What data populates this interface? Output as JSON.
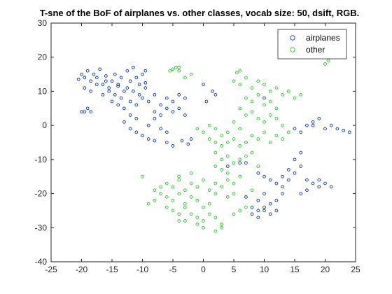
{
  "chart_data": {
    "type": "scatter",
    "title": "T-sne of the BoF of airplanes vs. other classes, vocab size: 50, dsift, RGB.",
    "xlabel": "",
    "ylabel": "",
    "xlim": [
      -25,
      25
    ],
    "ylim": [
      -40,
      30
    ],
    "xticks": [
      "-25",
      "-20",
      "-15",
      "-10",
      "-5",
      "0",
      "5",
      "10",
      "15",
      "20",
      "25"
    ],
    "yticks": [
      "-40",
      "-30",
      "-20",
      "-10",
      "0",
      "10",
      "20",
      "30"
    ],
    "grid": false,
    "legend_position": "top-right",
    "series": [
      {
        "name": "airplanes",
        "color": "#0033cc",
        "points": [
          [
            -20.5,
            13.5
          ],
          [
            -20,
            15
          ],
          [
            -19.5,
            14
          ],
          [
            -19,
            16
          ],
          [
            -18.5,
            13
          ],
          [
            -18,
            15
          ],
          [
            -17.5,
            14
          ],
          [
            -17,
            16.5
          ],
          [
            -16.5,
            12
          ],
          [
            -16,
            14.5
          ],
          [
            -15.5,
            11
          ],
          [
            -15,
            13
          ],
          [
            -14.5,
            15
          ],
          [
            -14,
            12
          ],
          [
            -13.5,
            14
          ],
          [
            -13,
            10
          ],
          [
            -12.5,
            16
          ],
          [
            -12,
            13
          ],
          [
            -11.5,
            17
          ],
          [
            -11,
            14
          ],
          [
            -10.5,
            12
          ],
          [
            -10,
            15
          ],
          [
            -9.5,
            16
          ],
          [
            -19.5,
            11
          ],
          [
            -18.5,
            10
          ],
          [
            -17.5,
            12
          ],
          [
            -16.5,
            9
          ],
          [
            -15.5,
            10
          ],
          [
            -14.5,
            9
          ],
          [
            -13.5,
            8
          ],
          [
            -12.5,
            11
          ],
          [
            -11.5,
            10
          ],
          [
            -10.5,
            9
          ],
          [
            -9.5,
            11
          ],
          [
            -19.5,
            4
          ],
          [
            -19,
            5
          ],
          [
            -18.5,
            4
          ],
          [
            -20,
            4
          ],
          [
            -15,
            7
          ],
          [
            -14,
            6
          ],
          [
            -13,
            5
          ],
          [
            -12,
            7
          ],
          [
            -11,
            6
          ],
          [
            -10,
            8
          ],
          [
            -9,
            7
          ],
          [
            -8,
            9
          ],
          [
            -7,
            6
          ],
          [
            -6,
            8
          ],
          [
            -5,
            7
          ],
          [
            -4,
            9
          ],
          [
            -3,
            8
          ],
          [
            -8,
            4
          ],
          [
            -7,
            3
          ],
          [
            -6,
            5
          ],
          [
            -5,
            4
          ],
          [
            -4,
            5
          ],
          [
            -3,
            3
          ],
          [
            -12,
            3
          ],
          [
            -11,
            2
          ],
          [
            -13,
            1
          ],
          [
            -12,
            -1
          ],
          [
            -11,
            -2
          ],
          [
            -10,
            -3
          ],
          [
            -9,
            -4
          ],
          [
            -8,
            -4.5
          ],
          [
            -6,
            -5
          ],
          [
            -5,
            -6
          ],
          [
            -9,
            0
          ],
          [
            -8,
            2
          ],
          [
            -7,
            -1
          ],
          [
            -6,
            -2
          ],
          [
            -3.5,
            -4.5
          ],
          [
            -2.5,
            -5.5
          ],
          [
            -2,
            -4
          ],
          [
            1.5,
            10
          ],
          [
            2,
            9
          ],
          [
            0,
            12
          ],
          [
            0.5,
            7
          ],
          [
            10,
            8
          ],
          [
            18,
            1
          ],
          [
            19,
            2
          ],
          [
            18,
            0
          ],
          [
            20,
            -1
          ],
          [
            21,
            0
          ],
          [
            22,
            -1
          ],
          [
            23,
            -1.5
          ],
          [
            24,
            -2
          ],
          [
            16,
            -2
          ],
          [
            17,
            0
          ],
          [
            15,
            -1
          ],
          [
            16,
            -8
          ],
          [
            15,
            -10
          ],
          [
            16,
            -12
          ],
          [
            14,
            -13
          ],
          [
            15,
            -14
          ],
          [
            13,
            -15
          ],
          [
            14,
            -16
          ],
          [
            13,
            -18
          ],
          [
            12,
            -17
          ],
          [
            17,
            -16
          ],
          [
            18,
            -17
          ],
          [
            19,
            -16
          ],
          [
            20,
            -17
          ],
          [
            19,
            -18
          ],
          [
            21,
            -18
          ],
          [
            16,
            -20
          ],
          [
            17,
            -19
          ],
          [
            10,
            -15
          ],
          [
            11,
            -16
          ],
          [
            9,
            -14
          ],
          [
            10,
            -20
          ],
          [
            9,
            -22
          ],
          [
            10,
            -24
          ],
          [
            11,
            -23
          ],
          [
            9,
            -25
          ],
          [
            8,
            -24
          ],
          [
            12,
            -22
          ],
          [
            13,
            -20
          ],
          [
            12,
            -25
          ],
          [
            11,
            -26
          ],
          [
            10,
            -25
          ],
          [
            7,
            -21
          ],
          [
            8,
            -26
          ],
          [
            9,
            -27
          ],
          [
            4,
            -12
          ],
          [
            6,
            -11
          ],
          [
            7,
            -11
          ],
          [
            -9.5,
            12.5
          ],
          [
            -14,
            11.5
          ],
          [
            -16,
            13
          ]
        ]
      },
      {
        "name": "other",
        "color": "#22cc22",
        "points": [
          [
            -5,
            16.5
          ],
          [
            -4.5,
            17
          ],
          [
            -4,
            16
          ],
          [
            -5.5,
            16
          ],
          [
            -4,
            17
          ],
          [
            -3,
            14
          ],
          [
            -2,
            15
          ],
          [
            6,
            16
          ],
          [
            5.5,
            15.5
          ],
          [
            20,
            18
          ],
          [
            20.5,
            19
          ],
          [
            5,
            13
          ],
          [
            6,
            12
          ],
          [
            7,
            14
          ],
          [
            8,
            11
          ],
          [
            9,
            13
          ],
          [
            10,
            12
          ],
          [
            11,
            10
          ],
          [
            12,
            11
          ],
          [
            13,
            9
          ],
          [
            14,
            10
          ],
          [
            15,
            8
          ],
          [
            16,
            9
          ],
          [
            7,
            8
          ],
          [
            8,
            7
          ],
          [
            9,
            9
          ],
          [
            10,
            6
          ],
          [
            11,
            7
          ],
          [
            12,
            5
          ],
          [
            6,
            5
          ],
          [
            7,
            3
          ],
          [
            8,
            4
          ],
          [
            9,
            2
          ],
          [
            10,
            1
          ],
          [
            11,
            3
          ],
          [
            12,
            2
          ],
          [
            13,
            0
          ],
          [
            5,
            1
          ],
          [
            6,
            -1
          ],
          [
            4,
            -2
          ],
          [
            3,
            -3
          ],
          [
            2,
            -1
          ],
          [
            1,
            0
          ],
          [
            0,
            -2
          ],
          [
            -1,
            -1
          ],
          [
            1,
            -4
          ],
          [
            2,
            -5
          ],
          [
            3,
            -6
          ],
          [
            4,
            -5
          ],
          [
            5,
            -4
          ],
          [
            6,
            -6
          ],
          [
            7,
            -5
          ],
          [
            8,
            -3
          ],
          [
            9,
            -4
          ],
          [
            10,
            -2
          ],
          [
            11,
            -5
          ],
          [
            12,
            -3
          ],
          [
            13,
            -4
          ],
          [
            14,
            -2
          ],
          [
            2,
            -8
          ],
          [
            3,
            -10
          ],
          [
            4,
            -9
          ],
          [
            5,
            -11
          ],
          [
            6,
            -10
          ],
          [
            7,
            -9
          ],
          [
            8,
            -8
          ],
          [
            9,
            -12
          ],
          [
            3,
            -13
          ],
          [
            4,
            -14
          ],
          [
            2,
            -12
          ],
          [
            -6,
            -17
          ],
          [
            -5,
            -18
          ],
          [
            -4,
            -16
          ],
          [
            -3,
            -19
          ],
          [
            -2,
            -17
          ],
          [
            -1,
            -18
          ],
          [
            0,
            -16
          ],
          [
            1,
            -19
          ],
          [
            2,
            -17
          ],
          [
            3,
            -18
          ],
          [
            -7,
            -20
          ],
          [
            -6,
            -21
          ],
          [
            -5,
            -22
          ],
          [
            -4,
            -20
          ],
          [
            -3,
            -23
          ],
          [
            -2,
            -21
          ],
          [
            -1,
            -22
          ],
          [
            0,
            -24
          ],
          [
            1,
            -23
          ],
          [
            2,
            -20
          ],
          [
            -6,
            -24
          ],
          [
            -5,
            -25
          ],
          [
            -4,
            -26
          ],
          [
            -3,
            -24
          ],
          [
            -2,
            -26
          ],
          [
            -1,
            -27
          ],
          [
            0,
            -28
          ],
          [
            1,
            -26
          ],
          [
            2,
            -27
          ],
          [
            3,
            -29
          ],
          [
            -1,
            -29
          ],
          [
            0,
            -30
          ],
          [
            -3,
            -28
          ],
          [
            -4,
            -28
          ],
          [
            -8,
            -22
          ],
          [
            -9,
            -23
          ],
          [
            -10,
            -15
          ],
          [
            -2,
            -14
          ],
          [
            -4,
            -15
          ],
          [
            4,
            -16
          ],
          [
            5,
            -17
          ],
          [
            6,
            -15
          ],
          [
            4,
            -21
          ],
          [
            5,
            -20
          ],
          [
            5,
            -26
          ],
          [
            6,
            -25
          ],
          [
            7,
            -24
          ],
          [
            8,
            -19
          ],
          [
            2,
            -31
          ],
          [
            3,
            -30
          ],
          [
            -7,
            -18
          ],
          [
            -8,
            -19
          ]
        ]
      }
    ]
  }
}
